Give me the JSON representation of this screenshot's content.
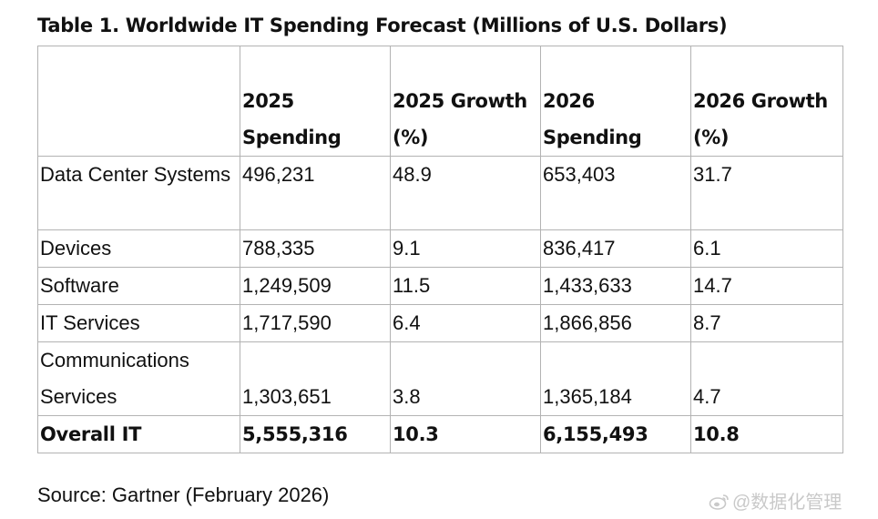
{
  "title": "Table 1. Worldwide IT Spending Forecast (Millions of U.S. Dollars)",
  "table": {
    "headers": [
      "",
      "2025 Spending",
      "2025 Growth (%)",
      "2026 Spending",
      "2026 Growth (%)"
    ],
    "rows": [
      {
        "category": "Data Center Systems",
        "spend_2025": "496,231",
        "growth_2025": "48.9",
        "spend_2026": "653,403",
        "growth_2026": "31.7"
      },
      {
        "category": "Devices",
        "spend_2025": "788,335",
        "growth_2025": "9.1",
        "spend_2026": "836,417",
        "growth_2026": "6.1"
      },
      {
        "category": "Software",
        "spend_2025": "1,249,509",
        "growth_2025": "11.5",
        "spend_2026": "1,433,633",
        "growth_2026": "14.7"
      },
      {
        "category": "IT Services",
        "spend_2025": "1,717,590",
        "growth_2025": "6.4",
        "spend_2026": "1,866,856",
        "growth_2026": "8.7"
      },
      {
        "category": "Communications Services",
        "spend_2025": "1,303,651",
        "growth_2025": "3.8",
        "spend_2026": "1,365,184",
        "growth_2026": "4.7"
      }
    ],
    "total": {
      "category": "Overall IT",
      "spend_2025": "5,555,316",
      "growth_2025": "10.3",
      "spend_2026": "6,155,493",
      "growth_2026": "10.8"
    }
  },
  "source": "Source: Gartner (February 2026)",
  "watermark": {
    "text": "@数据化管理",
    "icon": "weibo-icon"
  },
  "colors": {
    "text": "#111111",
    "border": "#b3b3b3",
    "watermark": "#c9c9c9"
  }
}
